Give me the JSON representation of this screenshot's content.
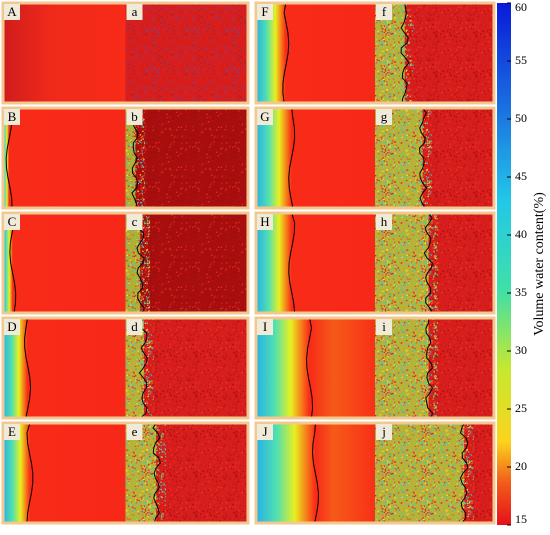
{
  "panels": [
    {
      "smooth": "A",
      "particle": "a"
    },
    {
      "smooth": "B",
      "particle": "b"
    },
    {
      "smooth": "C",
      "particle": "c"
    },
    {
      "smooth": "D",
      "particle": "d"
    },
    {
      "smooth": "E",
      "particle": "e"
    },
    {
      "smooth": "F",
      "particle": "f"
    },
    {
      "smooth": "G",
      "particle": "g"
    },
    {
      "smooth": "H",
      "particle": "h"
    },
    {
      "smooth": "I",
      "particle": "i"
    },
    {
      "smooth": "J",
      "particle": "j"
    }
  ],
  "colorbar": {
    "label": "Volume water content(%)",
    "lim": [
      15,
      60
    ],
    "ticks": [
      15,
      20,
      25,
      30,
      35,
      40,
      45,
      50,
      55,
      60
    ]
  }
}
